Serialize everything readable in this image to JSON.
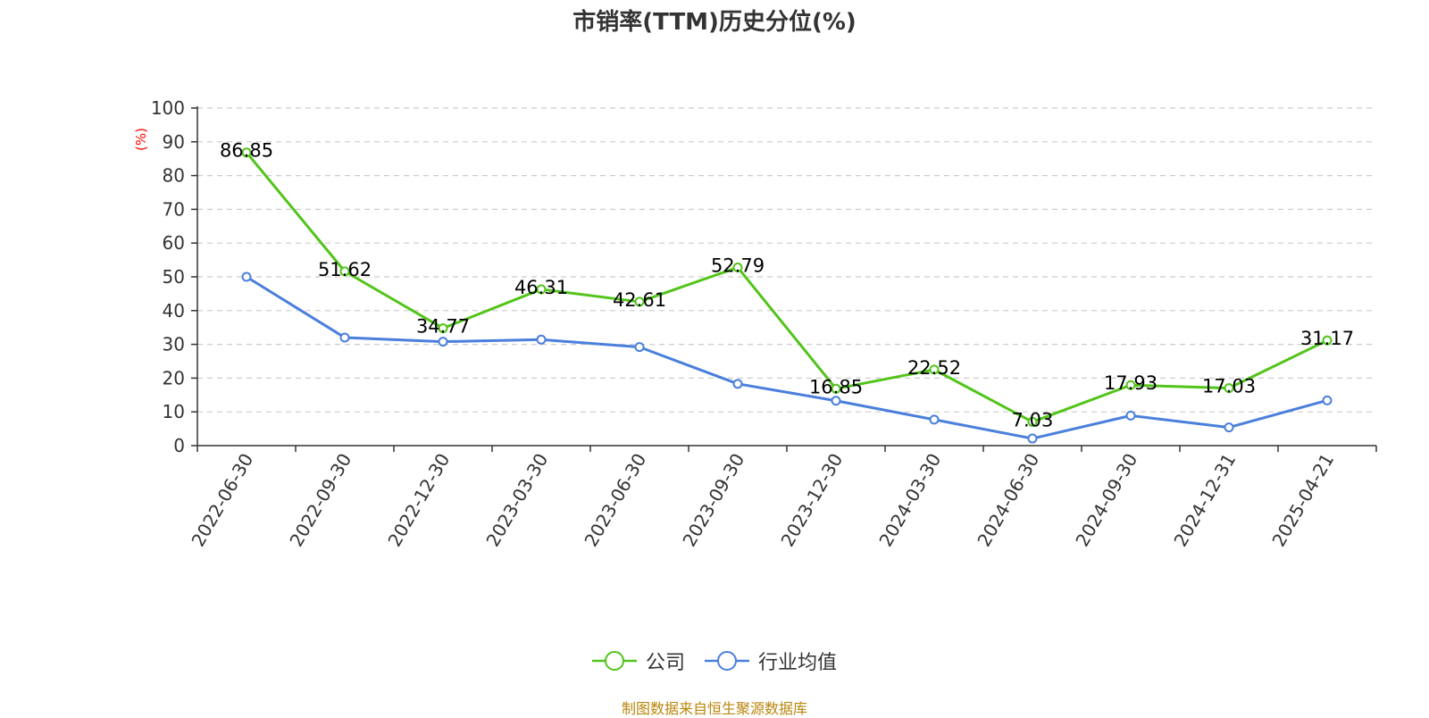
{
  "chart_data": {
    "type": "line",
    "title": "市销率(TTM)历史分位(%)",
    "ylabel": "(%)",
    "ylim": [
      0,
      100
    ],
    "yticks": [
      0,
      10,
      20,
      30,
      40,
      50,
      60,
      70,
      80,
      90,
      100
    ],
    "grid": true,
    "legend_position": "bottom",
    "categories": [
      "2022-06-30",
      "2022-09-30",
      "2022-12-30",
      "2023-03-30",
      "2023-06-30",
      "2023-09-30",
      "2023-12-30",
      "2024-03-30",
      "2024-06-30",
      "2024-09-30",
      "2024-12-31",
      "2025-04-21"
    ],
    "series": [
      {
        "name": "公司",
        "color": "#52c41a",
        "values": [
          86.85,
          51.62,
          34.77,
          46.31,
          42.61,
          52.79,
          16.85,
          22.52,
          7.03,
          17.93,
          17.03,
          31.17
        ],
        "labels": [
          "86.85",
          "51.62",
          "34.77",
          "46.31",
          "42.61",
          "52.79",
          "16.85",
          "22.52",
          "7.03",
          "17.93",
          "17.03",
          "31.17"
        ]
      },
      {
        "name": "行业均值",
        "color": "#4a7fdc",
        "values": [
          50.0,
          32.0,
          30.8,
          31.4,
          29.2,
          18.3,
          13.3,
          7.7,
          2.1,
          8.9,
          5.4,
          13.4
        ]
      }
    ]
  },
  "footer": {
    "source": "制图数据来自恒生聚源数据库"
  }
}
